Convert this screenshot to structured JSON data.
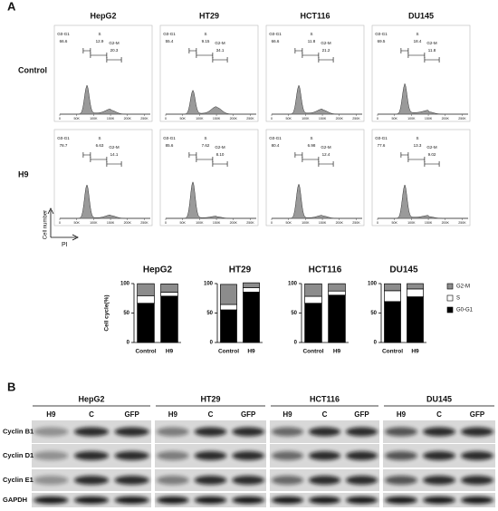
{
  "flow": {
    "label": "A",
    "columns": [
      "HepG2",
      "HT29",
      "HCT116",
      "DU145"
    ],
    "rows": [
      "Control",
      "H9"
    ],
    "x_label": "PI",
    "y_label": "Cell number",
    "gates": [
      "G0-G1",
      "S",
      "G2-M"
    ],
    "xlim": [
      0,
      262144
    ],
    "xticks": [
      {
        "value": 0,
        "label": "0"
      },
      {
        "value": 50000,
        "label": "50K"
      },
      {
        "value": 100000,
        "label": "100K"
      },
      {
        "value": 150000,
        "label": "150K"
      },
      {
        "value": 200000,
        "label": "200K"
      },
      {
        "value": 250000,
        "label": "250K"
      }
    ],
    "panels": [
      [
        [
          66.6,
          12.9,
          20.3
        ],
        [
          55.4,
          9.15,
          34.1
        ],
        [
          66.6,
          11.8,
          21.2
        ],
        [
          69.5,
          18.4,
          11.8
        ]
      ],
      [
        [
          78.7,
          6.63,
          14.1
        ],
        [
          85.6,
          7.62,
          {
            "value": 8.1,
            "label": "8.10"
          }
        ],
        [
          80.4,
          6.98,
          12.4
        ],
        [
          77.6,
          13.3,
          9.02
        ]
      ]
    ]
  },
  "chart_data": [
    {
      "type": "bar",
      "title": "HepG2",
      "y_label": "Cell cycle(%)",
      "categories": [
        "Control",
        "H9"
      ],
      "ylim": [
        0,
        100
      ],
      "yticks": [
        0,
        50,
        100
      ],
      "series": [
        {
          "name": "G2-M",
          "color": "#8c8c8c",
          "values": [
            20.3,
            14.1
          ]
        },
        {
          "name": "S",
          "color": "#ffffff",
          "values": [
            12.9,
            6.63
          ]
        },
        {
          "name": "G0-G1",
          "color": "#000000",
          "values": [
            66.6,
            78.7
          ]
        }
      ]
    },
    {
      "type": "bar",
      "title": "HT29",
      "categories": [
        "Control",
        "H9"
      ],
      "ylim": [
        0,
        100
      ],
      "yticks": [
        0,
        50,
        100
      ],
      "series": [
        {
          "name": "G2-M",
          "color": "#8c8c8c",
          "values": [
            34.1,
            8.1
          ]
        },
        {
          "name": "S",
          "color": "#ffffff",
          "values": [
            9.15,
            7.62
          ]
        },
        {
          "name": "G0-G1",
          "color": "#000000",
          "values": [
            55.4,
            85.6
          ]
        }
      ]
    },
    {
      "type": "bar",
      "title": "HCT116",
      "categories": [
        "Control",
        "H9"
      ],
      "ylim": [
        0,
        100
      ],
      "yticks": [
        0,
        50,
        100
      ],
      "series": [
        {
          "name": "G2-M",
          "color": "#8c8c8c",
          "values": [
            21.2,
            12.4
          ]
        },
        {
          "name": "S",
          "color": "#ffffff",
          "values": [
            11.8,
            6.98
          ]
        },
        {
          "name": "G0-G1",
          "color": "#000000",
          "values": [
            66.6,
            80.4
          ]
        }
      ]
    },
    {
      "type": "bar",
      "title": "DU145",
      "categories": [
        "Control",
        "H9"
      ],
      "ylim": [
        0,
        100
      ],
      "yticks": [
        0,
        50,
        100
      ],
      "legend": "right",
      "series": [
        {
          "name": "G2-M",
          "color": "#8c8c8c",
          "values": [
            11.8,
            9.02
          ]
        },
        {
          "name": "S",
          "color": "#ffffff",
          "values": [
            18.4,
            13.3
          ]
        },
        {
          "name": "G0-G1",
          "color": "#000000",
          "values": [
            69.5,
            77.6
          ]
        }
      ]
    }
  ],
  "western_blot": {
    "label": "B",
    "groups": [
      "HepG2",
      "HT29",
      "HCT116",
      "DU145"
    ],
    "lanes": [
      "H9",
      "C",
      "GFP"
    ],
    "rows": [
      "Cyclin B1",
      "Cyclin D1",
      "Cyclin E1",
      "GAPDH"
    ]
  }
}
